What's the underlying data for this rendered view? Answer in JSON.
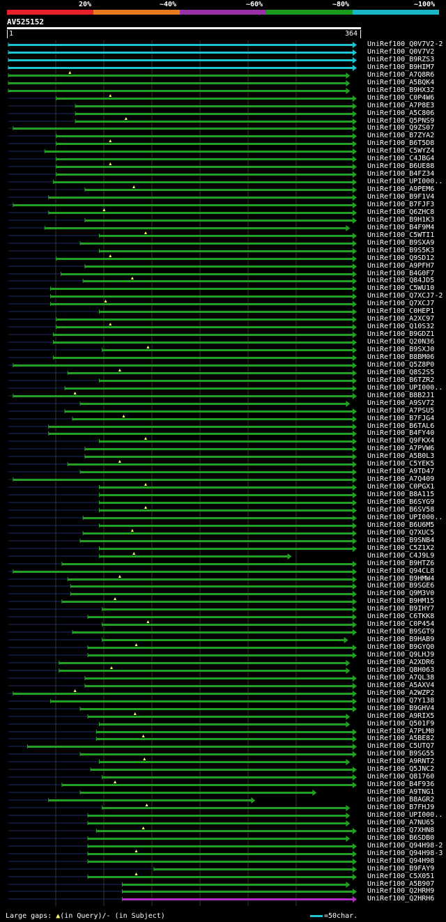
{
  "legend": {
    "labels": [
      "20%",
      "~40%",
      "~60%",
      "~80%",
      "~100%"
    ],
    "colors": [
      "#e8202a",
      "#e87a20",
      "#9a30a8",
      "#1a9a1a",
      "#1ab8c4"
    ]
  },
  "query": {
    "id": "AV525152",
    "start": "1",
    "end": "364"
  },
  "colors": {
    "cyan": "#1ec3d2",
    "green": "#22a022",
    "magenta": "#b030c0",
    "gap": "#1c2a6a",
    "grid": "#2a3a2a",
    "marker": "#ffff66"
  },
  "hits": [
    {
      "id": "UniRef100_Q0V7V2-2",
      "s": 0,
      "e": 364,
      "c": "cyan"
    },
    {
      "id": "UniRef100_Q0V7V2",
      "s": 0,
      "e": 364,
      "c": "cyan"
    },
    {
      "id": "UniRef100_B9RZS3",
      "s": 0,
      "e": 364,
      "c": "cyan"
    },
    {
      "id": "UniRef100_B9HIM7",
      "s": 0,
      "e": 364,
      "c": "cyan"
    },
    {
      "id": "UniRef100_A7Q8R6",
      "s": 0,
      "e": 357,
      "c": "green"
    },
    {
      "id": "UniRef100_A5BQK4",
      "s": 0,
      "e": 357,
      "c": "green"
    },
    {
      "id": "UniRef100_B9HX32",
      "s": 0,
      "e": 357,
      "c": "green"
    },
    {
      "id": "UniRef100_C0P4W6",
      "s": 50,
      "e": 364,
      "c": "green"
    },
    {
      "id": "UniRef100_A7P8E3",
      "s": 70,
      "e": 364,
      "c": "green"
    },
    {
      "id": "UniRef100_A5C806",
      "s": 70,
      "e": 364,
      "c": "green"
    },
    {
      "id": "UniRef100_Q5PNS9",
      "s": 70,
      "e": 364,
      "c": "green"
    },
    {
      "id": "UniRef100_Q9ZS07",
      "s": 5,
      "e": 364,
      "c": "green"
    },
    {
      "id": "UniRef100_B7ZYA2",
      "s": 50,
      "e": 364,
      "c": "green"
    },
    {
      "id": "UniRef100_B6T5D8",
      "s": 50,
      "e": 364,
      "c": "green"
    },
    {
      "id": "UniRef100_C5WYZ4",
      "s": 38,
      "e": 364,
      "c": "green"
    },
    {
      "id": "UniRef100_C4JBG4",
      "s": 50,
      "e": 364,
      "c": "green"
    },
    {
      "id": "UniRef100_B6UE88",
      "s": 50,
      "e": 364,
      "c": "green"
    },
    {
      "id": "UniRef100_B4FZ34",
      "s": 50,
      "e": 364,
      "c": "green"
    },
    {
      "id": "UniRef100_UPI000..",
      "s": 47,
      "e": 364,
      "c": "green"
    },
    {
      "id": "UniRef100_A9PEM6",
      "s": 80,
      "e": 364,
      "c": "green"
    },
    {
      "id": "UniRef100_B9F1V4",
      "s": 42,
      "e": 364,
      "c": "green"
    },
    {
      "id": "UniRef100_B7FJF3",
      "s": 5,
      "e": 364,
      "c": "green"
    },
    {
      "id": "UniRef100_Q6ZHC8",
      "s": 42,
      "e": 364,
      "c": "green"
    },
    {
      "id": "UniRef100_B9H1K3",
      "s": 80,
      "e": 364,
      "c": "green"
    },
    {
      "id": "UniRef100_B4F9M4",
      "s": 38,
      "e": 357,
      "c": "green"
    },
    {
      "id": "UniRef100_C5WTI1",
      "s": 95,
      "e": 364,
      "c": "green"
    },
    {
      "id": "UniRef100_B9SXA9",
      "s": 75,
      "e": 364,
      "c": "green"
    },
    {
      "id": "UniRef100_B9S5K3",
      "s": 95,
      "e": 364,
      "c": "green"
    },
    {
      "id": "UniRef100_Q9SD12",
      "s": 50,
      "e": 364,
      "c": "green"
    },
    {
      "id": "UniRef100_A9PFH7",
      "s": 80,
      "e": 364,
      "c": "green"
    },
    {
      "id": "UniRef100_B4G0F7",
      "s": 55,
      "e": 364,
      "c": "green"
    },
    {
      "id": "UniRef100_Q84JD5",
      "s": 78,
      "e": 364,
      "c": "green"
    },
    {
      "id": "UniRef100_C5WU10",
      "s": 44,
      "e": 364,
      "c": "green"
    },
    {
      "id": "UniRef100_Q7XCJ7-2",
      "s": 44,
      "e": 364,
      "c": "green"
    },
    {
      "id": "UniRef100_Q7XCJ7",
      "s": 44,
      "e": 364,
      "c": "green"
    },
    {
      "id": "UniRef100_C0HEP1",
      "s": 95,
      "e": 364,
      "c": "green"
    },
    {
      "id": "UniRef100_A2XC97",
      "s": 50,
      "e": 364,
      "c": "green"
    },
    {
      "id": "UniRef100_Q10S32",
      "s": 50,
      "e": 364,
      "c": "green"
    },
    {
      "id": "UniRef100_B9GDZ1",
      "s": 47,
      "e": 364,
      "c": "green"
    },
    {
      "id": "UniRef100_Q20N36",
      "s": 47,
      "e": 364,
      "c": "green"
    },
    {
      "id": "UniRef100_B9SXJ0",
      "s": 98,
      "e": 364,
      "c": "green"
    },
    {
      "id": "UniRef100_B8BM06",
      "s": 47,
      "e": 364,
      "c": "green"
    },
    {
      "id": "UniRef100_Q5Z8P0",
      "s": 5,
      "e": 364,
      "c": "green"
    },
    {
      "id": "UniRef100_Q8S2S5",
      "s": 62,
      "e": 364,
      "c": "green"
    },
    {
      "id": "UniRef100_B6TZR2",
      "s": 95,
      "e": 364,
      "c": "green"
    },
    {
      "id": "UniRef100_UPI000..",
      "s": 59,
      "e": 364,
      "c": "green"
    },
    {
      "id": "UniRef100_B8B2J1",
      "s": 5,
      "e": 364,
      "c": "green"
    },
    {
      "id": "UniRef100_A9SV72",
      "s": 75,
      "e": 357,
      "c": "green"
    },
    {
      "id": "UniRef100_A7PSU5",
      "s": 59,
      "e": 364,
      "c": "green"
    },
    {
      "id": "UniRef100_B7FJG4",
      "s": 67,
      "e": 364,
      "c": "green"
    },
    {
      "id": "UniRef100_B6TAL6",
      "s": 42,
      "e": 364,
      "c": "green"
    },
    {
      "id": "UniRef100_B4FY40",
      "s": 42,
      "e": 364,
      "c": "green"
    },
    {
      "id": "UniRef100_Q9FKX4",
      "s": 95,
      "e": 364,
      "c": "green"
    },
    {
      "id": "UniRef100_A7PVW6",
      "s": 80,
      "e": 364,
      "c": "green"
    },
    {
      "id": "UniRef100_A5B0L3",
      "s": 80,
      "e": 364,
      "c": "green"
    },
    {
      "id": "UniRef100_C5YEK5",
      "s": 62,
      "e": 364,
      "c": "green"
    },
    {
      "id": "UniRef100_A9TD47",
      "s": 75,
      "e": 364,
      "c": "green"
    },
    {
      "id": "UniRef100_A7Q409",
      "s": 5,
      "e": 364,
      "c": "green"
    },
    {
      "id": "UniRef100_C0PGX1",
      "s": 95,
      "e": 364,
      "c": "green"
    },
    {
      "id": "UniRef100_B8A115",
      "s": 95,
      "e": 364,
      "c": "green"
    },
    {
      "id": "UniRef100_B6SYG9",
      "s": 95,
      "e": 364,
      "c": "green"
    },
    {
      "id": "UniRef100_B6SV58",
      "s": 95,
      "e": 364,
      "c": "green"
    },
    {
      "id": "UniRef100_UPI000..",
      "s": 78,
      "e": 364,
      "c": "green"
    },
    {
      "id": "UniRef100_B6U6M5",
      "s": 95,
      "e": 364,
      "c": "green"
    },
    {
      "id": "UniRef100_Q7XUC5",
      "s": 78,
      "e": 364,
      "c": "green"
    },
    {
      "id": "UniRef100_B9SNB4",
      "s": 75,
      "e": 364,
      "c": "green"
    },
    {
      "id": "UniRef100_C5Z1X2",
      "s": 95,
      "e": 364,
      "c": "green"
    },
    {
      "id": "UniRef100_C4J9L9",
      "s": 95,
      "e": 296,
      "c": "green"
    },
    {
      "id": "UniRef100_B9HTZ6",
      "s": 56,
      "e": 364,
      "c": "green"
    },
    {
      "id": "UniRef100_Q94CL8",
      "s": 5,
      "e": 364,
      "c": "green"
    },
    {
      "id": "UniRef100_B9HMW4",
      "s": 62,
      "e": 364,
      "c": "green"
    },
    {
      "id": "UniRef100_B9SGE6",
      "s": 65,
      "e": 364,
      "c": "green"
    },
    {
      "id": "UniRef100_Q9M3V0",
      "s": 65,
      "e": 364,
      "c": "green"
    },
    {
      "id": "UniRef100_B9HM15",
      "s": 56,
      "e": 364,
      "c": "green"
    },
    {
      "id": "UniRef100_B9IHY7",
      "s": 98,
      "e": 364,
      "c": "green"
    },
    {
      "id": "UniRef100_C6TKK8",
      "s": 83,
      "e": 364,
      "c": "green"
    },
    {
      "id": "UniRef100_C0P454",
      "s": 98,
      "e": 364,
      "c": "green"
    },
    {
      "id": "UniRef100_B9SGT9",
      "s": 67,
      "e": 364,
      "c": "green"
    },
    {
      "id": "UniRef100_B9HAB9",
      "s": 98,
      "e": 355,
      "c": "green"
    },
    {
      "id": "UniRef100_B9GYQ0",
      "s": 83,
      "e": 364,
      "c": "green"
    },
    {
      "id": "UniRef100_Q9LHJ9",
      "s": 83,
      "e": 364,
      "c": "green"
    },
    {
      "id": "UniRef100_A2XDR6",
      "s": 53,
      "e": 357,
      "c": "green"
    },
    {
      "id": "UniRef100_Q8H063",
      "s": 53,
      "e": 357,
      "c": "green"
    },
    {
      "id": "UniRef100_A7QL38",
      "s": 80,
      "e": 364,
      "c": "green"
    },
    {
      "id": "UniRef100_A5AXV4",
      "s": 80,
      "e": 364,
      "c": "green"
    },
    {
      "id": "UniRef100_A2WZP2",
      "s": 5,
      "e": 364,
      "c": "green"
    },
    {
      "id": "UniRef100_Q7Y138",
      "s": 44,
      "e": 364,
      "c": "green"
    },
    {
      "id": "UniRef100_B9GHV4",
      "s": 75,
      "e": 364,
      "c": "green"
    },
    {
      "id": "UniRef100_A9RIX5",
      "s": 83,
      "e": 357,
      "c": "green"
    },
    {
      "id": "UniRef100_Q501F9",
      "s": 95,
      "e": 357,
      "c": "green"
    },
    {
      "id": "UniRef100_A7PLM0",
      "s": 92,
      "e": 364,
      "c": "green"
    },
    {
      "id": "UniRef100_A5BE82",
      "s": 92,
      "e": 364,
      "c": "green"
    },
    {
      "id": "UniRef100_C5UTQ7",
      "s": 20,
      "e": 364,
      "c": "green"
    },
    {
      "id": "UniRef100_B9SG55",
      "s": 75,
      "e": 364,
      "c": "green"
    },
    {
      "id": "UniRef100_A9RNT2",
      "s": 95,
      "e": 357,
      "c": "green"
    },
    {
      "id": "UniRef100_Q5JNC2",
      "s": 86,
      "e": 364,
      "c": "green"
    },
    {
      "id": "UniRef100_Q81760",
      "s": 98,
      "e": 364,
      "c": "green"
    },
    {
      "id": "UniRef100_B4F936",
      "s": 56,
      "e": 364,
      "c": "green"
    },
    {
      "id": "UniRef100_A9TNG1",
      "s": 75,
      "e": 322,
      "c": "green"
    },
    {
      "id": "UniRef100_B8AGR2",
      "s": 42,
      "e": 258,
      "c": "green"
    },
    {
      "id": "UniRef100_B7FHJ9",
      "s": 98,
      "e": 357,
      "c": "green"
    },
    {
      "id": "UniRef100_UPI000..",
      "s": 83,
      "e": 357,
      "c": "green"
    },
    {
      "id": "UniRef100_A7NU65",
      "s": 83,
      "e": 357,
      "c": "green"
    },
    {
      "id": "UniRef100_Q7XHN8",
      "s": 92,
      "e": 364,
      "c": "green"
    },
    {
      "id": "UniRef100_B6SDB0",
      "s": 83,
      "e": 357,
      "c": "green"
    },
    {
      "id": "UniRef100_Q94H98-2",
      "s": 83,
      "e": 364,
      "c": "green"
    },
    {
      "id": "UniRef100_Q94H98-3",
      "s": 83,
      "e": 364,
      "c": "green"
    },
    {
      "id": "UniRef100_Q94H98",
      "s": 83,
      "e": 364,
      "c": "green"
    },
    {
      "id": "UniRef100_B9FAY9",
      "s": 152,
      "e": 364,
      "c": "green"
    },
    {
      "id": "UniRef100_C5X051",
      "s": 83,
      "e": 364,
      "c": "green"
    },
    {
      "id": "UniRef100_A5B907",
      "s": 119,
      "e": 357,
      "c": "green"
    },
    {
      "id": "UniRef100_Q2HRH9",
      "s": 119,
      "e": 364,
      "c": "green"
    },
    {
      "id": "UniRef100_Q2HRH6",
      "s": 119,
      "e": 364,
      "c": "magenta"
    }
  ],
  "footer": {
    "left_prefix": "Large gaps: ",
    "left_query": "(in Query)/",
    "left_subject": "- (in Subject)",
    "scale": "=50char."
  }
}
